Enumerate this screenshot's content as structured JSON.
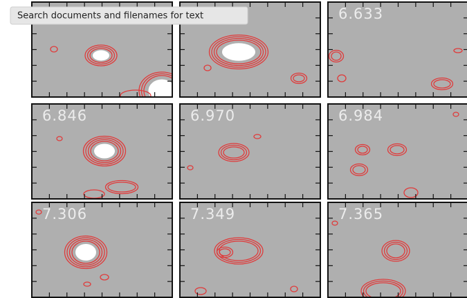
{
  "tooltip": "Search documents and filenames for text",
  "panel_labels": [
    "6.633",
    "6.846",
    "6.970",
    "6.984",
    "7.306",
    "7.349",
    "7.365"
  ]
}
